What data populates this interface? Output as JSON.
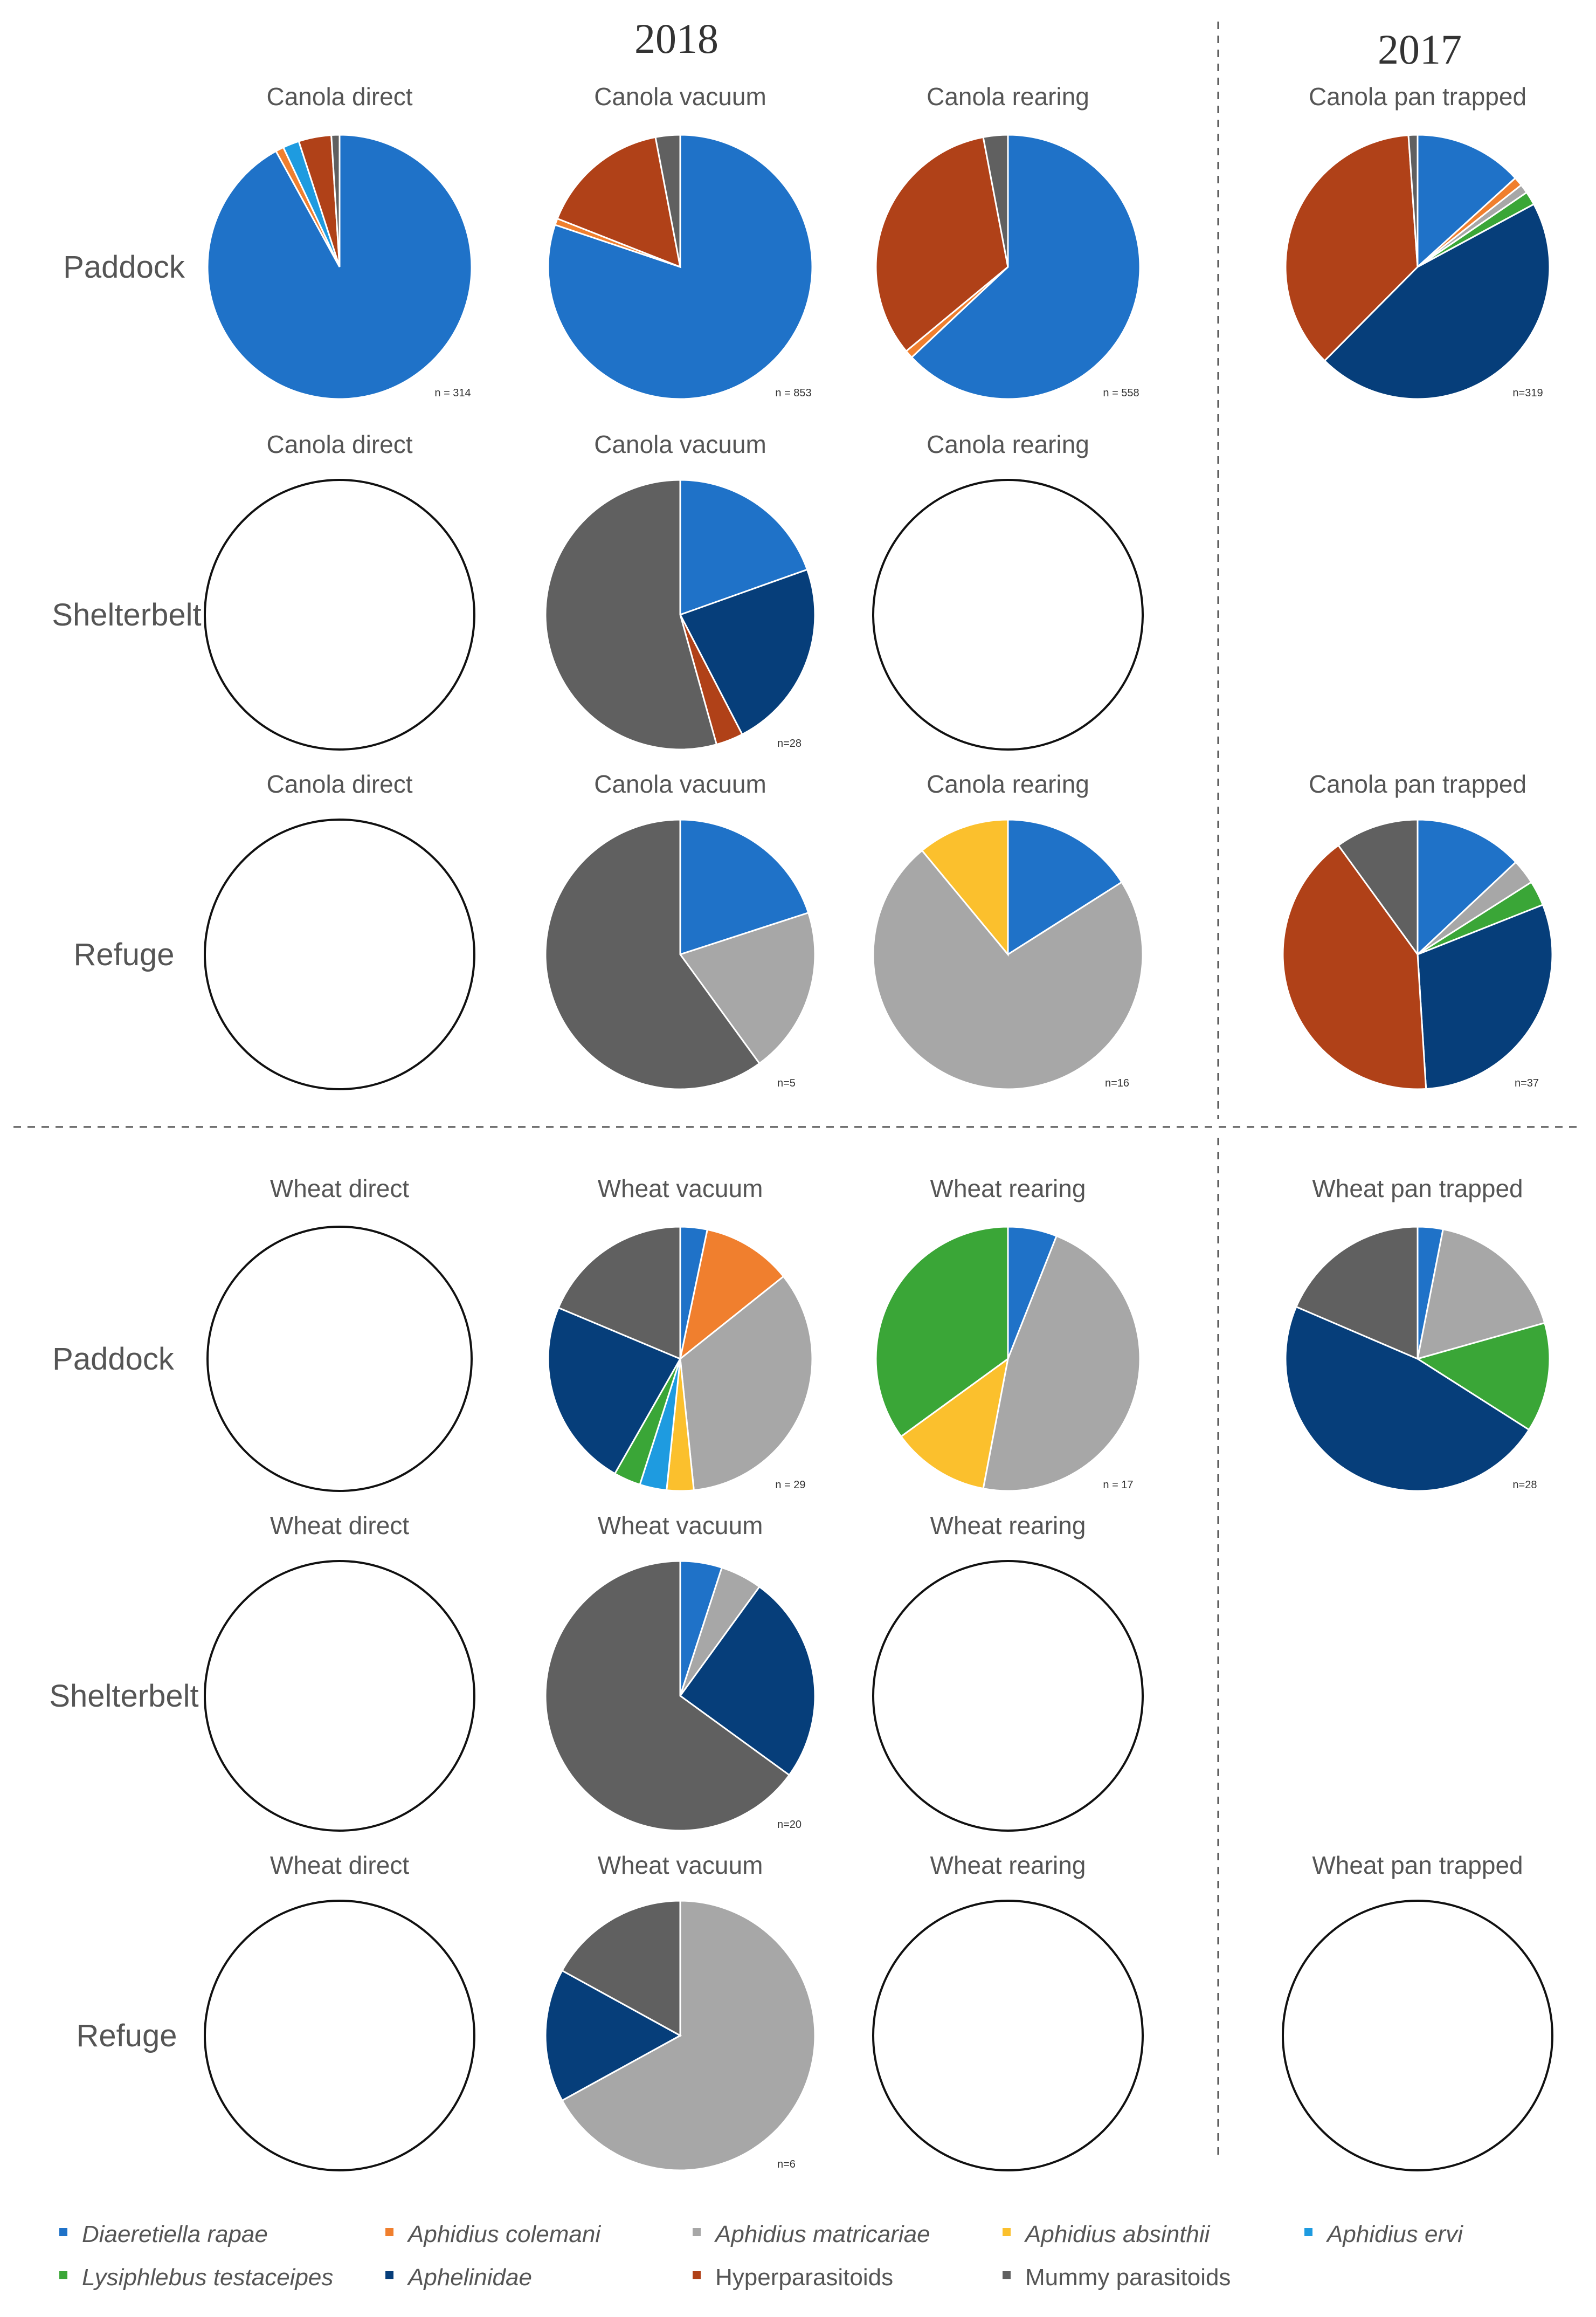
{
  "chart_data": {
    "type": "pie",
    "headers": {
      "year_2018": "2018",
      "year_2017": "2017"
    },
    "rows": [
      {
        "key": "canola_paddock",
        "label": "Paddock"
      },
      {
        "key": "canola_shelterbelt",
        "label": "Shelterbelt"
      },
      {
        "key": "canola_refuge",
        "label": "Refuge"
      },
      {
        "key": "wheat_paddock",
        "label": "Paddock"
      },
      {
        "key": "wheat_shelterbelt",
        "label": "Shelterbelt"
      },
      {
        "key": "wheat_refuge",
        "label": "Refuge"
      }
    ],
    "legend": [
      {
        "name": "Diaeretiella rapae",
        "color": "#1f72c8",
        "italic": true
      },
      {
        "name": "Aphidius colemani",
        "color": "#f07f2e",
        "italic": true
      },
      {
        "name": "Aphidius matricariae",
        "color": "#a7a7a7",
        "italic": true
      },
      {
        "name": "Aphidius absinthii",
        "color": "#fbc02d",
        "italic": true
      },
      {
        "name": "Aphidius ervi",
        "color": "#1e9be0",
        "italic": true
      },
      {
        "name": "Lysiphlebus testaceipes",
        "color": "#3aa637",
        "italic": true
      },
      {
        "name": "Aphelinidae",
        "color": "#063e7a",
        "italic": true
      },
      {
        "name": "Hyperparasitoids",
        "color": "#b04118",
        "italic": false
      },
      {
        "name": "Mummy parasitoids",
        "color": "#606060",
        "italic": false
      }
    ],
    "pies": [
      {
        "row": 0,
        "col": 0,
        "title": "Canola direct",
        "n": "n = 314",
        "empty": false,
        "values": [
          92,
          1,
          0,
          0,
          2,
          0,
          0,
          4,
          1
        ]
      },
      {
        "row": 0,
        "col": 1,
        "title": "Canola vacuum",
        "n": "n = 853",
        "empty": false,
        "values": [
          80,
          0.8,
          0,
          0,
          0,
          0,
          0,
          16,
          3
        ]
      },
      {
        "row": 0,
        "col": 2,
        "title": "Canola rearing",
        "n": "n = 558",
        "empty": false,
        "values": [
          63,
          1,
          0,
          0,
          0,
          0,
          0,
          33,
          3
        ]
      },
      {
        "row": 0,
        "col": 3,
        "title": "Canola pan trapped",
        "n": "n=319",
        "empty": false,
        "values": [
          12,
          1,
          1,
          0,
          0,
          1.5,
          41,
          33,
          1
        ]
      },
      {
        "row": 1,
        "col": 0,
        "title": "Canola direct",
        "n": "",
        "empty": true,
        "values": []
      },
      {
        "row": 1,
        "col": 1,
        "title": "Canola vacuum",
        "n": "n=28",
        "empty": false,
        "values": [
          18,
          0,
          0,
          0,
          0,
          0,
          21,
          3,
          50
        ]
      },
      {
        "row": 1,
        "col": 2,
        "title": "Canola rearing",
        "n": "",
        "empty": true,
        "values": []
      },
      {
        "row": 2,
        "col": 0,
        "title": "Canola direct",
        "n": "",
        "empty": true,
        "values": []
      },
      {
        "row": 2,
        "col": 1,
        "title": "Canola vacuum",
        "n": "n=5",
        "empty": false,
        "values": [
          20,
          0,
          20,
          0,
          0,
          0,
          0,
          0,
          60
        ]
      },
      {
        "row": 2,
        "col": 2,
        "title": "Canola rearing",
        "n": "n=16",
        "empty": false,
        "values": [
          16,
          0,
          73,
          11,
          0,
          0,
          0,
          0,
          0
        ]
      },
      {
        "row": 2,
        "col": 3,
        "title": "Canola pan trapped",
        "n": "n=37",
        "empty": false,
        "values": [
          13,
          0,
          3,
          0,
          0,
          3,
          30,
          41,
          10
        ]
      },
      {
        "row": 3,
        "col": 0,
        "title": "Wheat direct",
        "n": "",
        "empty": true,
        "values": []
      },
      {
        "row": 3,
        "col": 1,
        "title": "Wheat vacuum",
        "n": "n = 29",
        "empty": false,
        "values": [
          3,
          10,
          31,
          3,
          3,
          3,
          21,
          0,
          17
        ]
      },
      {
        "row": 3,
        "col": 2,
        "title": "Wheat rearing",
        "n": "n = 17",
        "empty": false,
        "values": [
          6,
          0,
          47,
          12,
          0,
          35,
          0,
          0,
          0
        ]
      },
      {
        "row": 3,
        "col": 3,
        "title": "Wheat pan trapped",
        "n": "n=28",
        "empty": false,
        "values": [
          3,
          0,
          17,
          0,
          0,
          13,
          46,
          0,
          18
        ]
      },
      {
        "row": 4,
        "col": 0,
        "title": "Wheat direct",
        "n": "",
        "empty": true,
        "values": []
      },
      {
        "row": 4,
        "col": 1,
        "title": "Wheat vacuum",
        "n": "n=20",
        "empty": false,
        "values": [
          5,
          0,
          5,
          0,
          0,
          0,
          25,
          0,
          65
        ]
      },
      {
        "row": 4,
        "col": 2,
        "title": "Wheat rearing",
        "n": "",
        "empty": true,
        "values": []
      },
      {
        "row": 5,
        "col": 0,
        "title": "Wheat direct",
        "n": "",
        "empty": true,
        "values": []
      },
      {
        "row": 5,
        "col": 1,
        "title": "Wheat vacuum",
        "n": "n=6",
        "empty": false,
        "values": [
          0,
          0,
          67,
          0,
          0,
          0,
          16,
          0,
          17
        ]
      },
      {
        "row": 5,
        "col": 2,
        "title": "Wheat rearing",
        "n": "",
        "empty": true,
        "values": []
      },
      {
        "row": 5,
        "col": 3,
        "title": "Wheat pan trapped",
        "n": "",
        "empty": true,
        "values": []
      }
    ]
  }
}
